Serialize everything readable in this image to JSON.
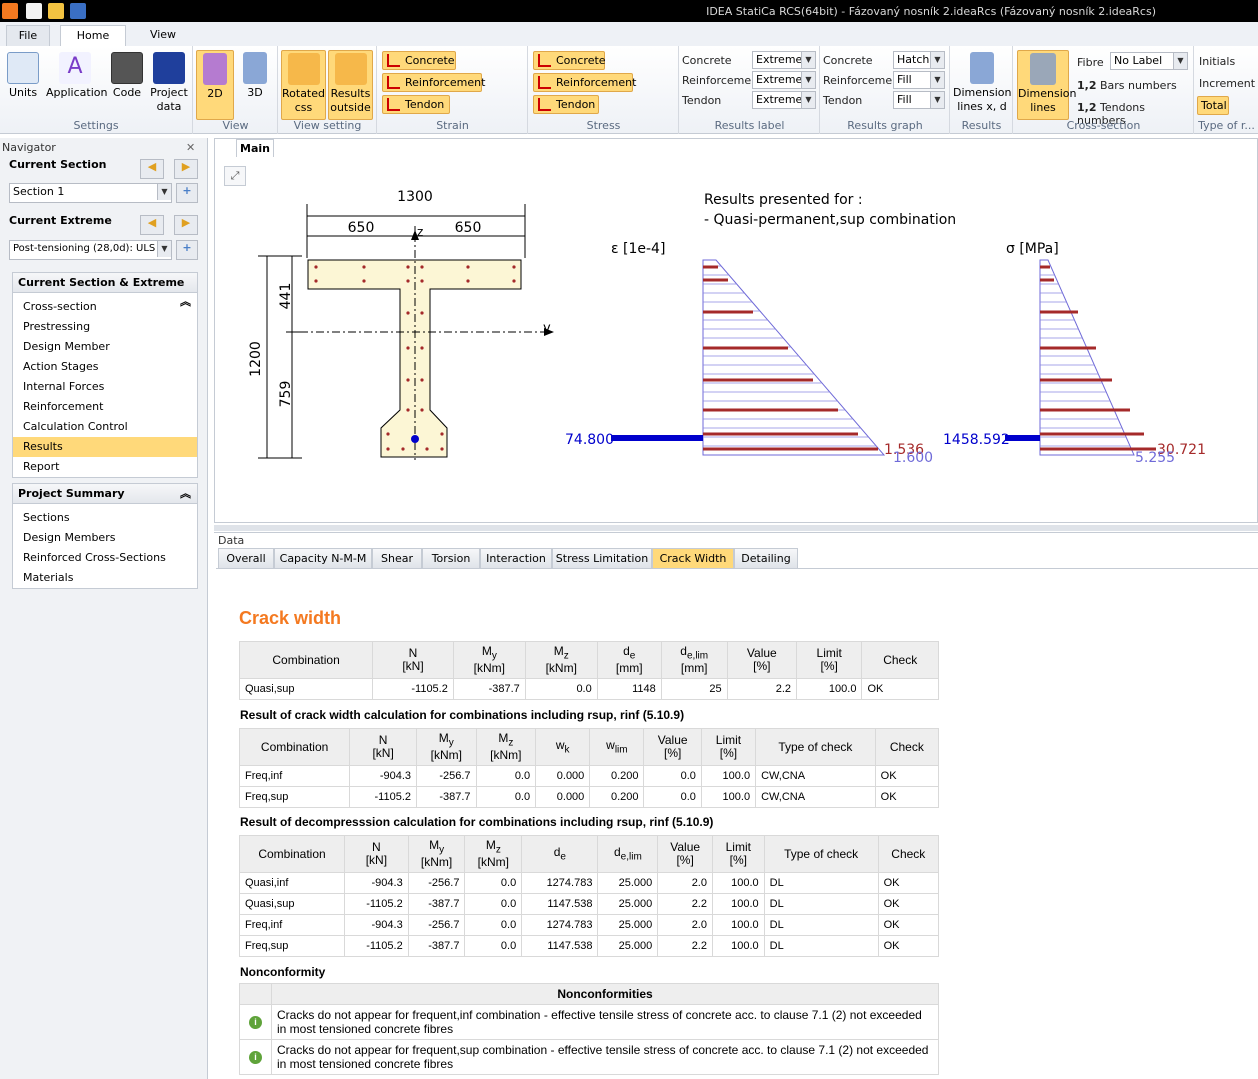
{
  "window": {
    "title": "IDEA StatiCa RCS(64bit) - Fázovaný nosník 2.ideaRcs (Fázovaný nosník 2.ideaRcs)"
  },
  "ribbon": {
    "tabs": [
      "File",
      "Home",
      "View"
    ],
    "settings": {
      "label": "Settings",
      "buttons": [
        "Units",
        "Application",
        "Code",
        "Project data"
      ]
    },
    "view": {
      "label": "View",
      "buttons": [
        "2D",
        "3D"
      ]
    },
    "view_setting": {
      "label": "View setting",
      "buttons": [
        "Rotated css",
        "Results outside"
      ]
    },
    "strain": {
      "label": "Strain",
      "buttons": [
        "Concrete",
        "Reinforcement",
        "Tendon"
      ]
    },
    "stress": {
      "label": "Stress",
      "buttons": [
        "Concrete",
        "Reinforcement",
        "Tendon"
      ]
    },
    "results_label": {
      "label": "Results label",
      "rows": [
        {
          "name": "Concrete",
          "value": "Extreme"
        },
        {
          "name": "Reinforcement",
          "value": "Extreme"
        },
        {
          "name": "Tendon",
          "value": "Extreme"
        }
      ]
    },
    "results_graph": {
      "label": "Results graph",
      "rows": [
        {
          "name": "Concrete",
          "value": "Hatch"
        },
        {
          "name": "Reinforcement",
          "value": "Fill"
        },
        {
          "name": "Tendon",
          "value": "Fill"
        }
      ]
    },
    "results": {
      "label": "Results",
      "button": "Dimension lines x, d"
    },
    "cross_section": {
      "label": "Cross-section",
      "button": "Dimension lines",
      "fibre_label": "Fibre",
      "fibre_value": "No Label",
      "bars": "Bars numbers",
      "tendons": "Tendons numbers"
    },
    "type": {
      "label": "Type of r...",
      "items": [
        "Initials",
        "Increment",
        "Total"
      ]
    }
  },
  "navigator": {
    "title": "Navigator",
    "current_section_label": "Current Section",
    "current_section_value": "Section 1",
    "current_extreme_label": "Current Extreme",
    "current_extreme_value": "Post-tensioning (28,0d): ULS",
    "panel1_title": "Current Section & Extreme",
    "panel1_items": [
      "Cross-section",
      "Prestressing",
      "Design Member",
      "Action Stages",
      "Internal Forces",
      "Reinforcement",
      "Calculation Control",
      "Results",
      "Report"
    ],
    "panel2_title": "Project Summary",
    "panel2_items": [
      "Sections",
      "Design Members",
      "Reinforced Cross-Sections",
      "Materials"
    ]
  },
  "main": {
    "tab": "Main",
    "results_for_1": "Results presented for :",
    "results_for_2": "- Quasi-permanent,sup combination",
    "dims": {
      "total": "1300",
      "left": "650",
      "right": "650",
      "height": "1200",
      "top": "441",
      "bottom": "759",
      "axis_z": "z",
      "axis_y": "y"
    },
    "strain_title": "ε [1e-4]",
    "strain_tendon": "74.800",
    "strain_top": "1.536",
    "strain_bottom": "1.600",
    "stress_title": "σ [MPa]",
    "stress_tendon": "1458.592",
    "stress_top": "30.721",
    "stress_bottom": "5.255"
  },
  "data": {
    "label": "Data",
    "tabs": [
      "Overall",
      "Capacity N-M-M",
      "Shear",
      "Torsion",
      "Interaction",
      "Stress Limitation",
      "Crack Width",
      "Detailing"
    ],
    "heading": "Crack width",
    "table1": {
      "headers": [
        [
          "Combination",
          ""
        ],
        [
          "N",
          "[kN]"
        ],
        [
          "My",
          "[kNm]"
        ],
        [
          "Mz",
          "[kNm]"
        ],
        [
          "de",
          "[mm]"
        ],
        [
          "de,lim",
          "[mm]"
        ],
        [
          "Value",
          "[%]"
        ],
        [
          "Limit",
          "[%]"
        ],
        [
          "Check",
          ""
        ]
      ],
      "rows": [
        [
          "Quasi,sup",
          "-1105.2",
          "-387.7",
          "0.0",
          "1148",
          "25",
          "2.2",
          "100.0",
          "OK"
        ]
      ]
    },
    "section2": "Result of crack width calculation for combinations including rsup, rinf (5.10.9)",
    "table2": {
      "headers": [
        [
          "Combination",
          ""
        ],
        [
          "N",
          "[kN]"
        ],
        [
          "My",
          "[kNm]"
        ],
        [
          "Mz",
          "[kNm]"
        ],
        [
          "wk",
          ""
        ],
        [
          "wlim",
          ""
        ],
        [
          "Value",
          "[%]"
        ],
        [
          "Limit",
          "[%]"
        ],
        [
          "Type of check",
          ""
        ],
        [
          "Check",
          ""
        ]
      ],
      "rows": [
        [
          "Freq,inf",
          "-904.3",
          "-256.7",
          "0.0",
          "0.000",
          "0.200",
          "0.0",
          "100.0",
          "CW,CNA",
          "OK"
        ],
        [
          "Freq,sup",
          "-1105.2",
          "-387.7",
          "0.0",
          "0.000",
          "0.200",
          "0.0",
          "100.0",
          "CW,CNA",
          "OK"
        ]
      ]
    },
    "section3": "Result of decompresssion calculation for combinations including rsup, rinf (5.10.9)",
    "table3": {
      "headers": [
        [
          "Combination",
          ""
        ],
        [
          "N",
          "[kN]"
        ],
        [
          "My",
          "[kNm]"
        ],
        [
          "Mz",
          "[kNm]"
        ],
        [
          "de",
          ""
        ],
        [
          "de,lim",
          ""
        ],
        [
          "Value",
          "[%]"
        ],
        [
          "Limit",
          "[%]"
        ],
        [
          "Type of check",
          ""
        ],
        [
          "Check",
          ""
        ]
      ],
      "rows": [
        [
          "Quasi,inf",
          "-904.3",
          "-256.7",
          "0.0",
          "1274.783",
          "25.000",
          "2.0",
          "100.0",
          "DL",
          "OK"
        ],
        [
          "Quasi,sup",
          "-1105.2",
          "-387.7",
          "0.0",
          "1147.538",
          "25.000",
          "2.2",
          "100.0",
          "DL",
          "OK"
        ],
        [
          "Freq,inf",
          "-904.3",
          "-256.7",
          "0.0",
          "1274.783",
          "25.000",
          "2.0",
          "100.0",
          "DL",
          "OK"
        ],
        [
          "Freq,sup",
          "-1105.2",
          "-387.7",
          "0.0",
          "1147.538",
          "25.000",
          "2.2",
          "100.0",
          "DL",
          "OK"
        ]
      ]
    },
    "section4": "Nonconformity",
    "nonconf_header": "Nonconformities",
    "nonconf": [
      "Cracks do not appear for frequent,inf combination - effective tensile stress of concrete acc. to clause 7.1 (2) not exceeded in most tensioned concrete fibres",
      "Cracks do not appear for frequent,sup combination - effective tensile stress of concrete acc. to clause 7.1 (2) not exceeded in most tensioned concrete fibres"
    ]
  },
  "colors": {
    "accent": "#ffd97a",
    "heading": "#f47920",
    "strain_bar": "#a52a2a",
    "tendon": "#0000cc"
  }
}
